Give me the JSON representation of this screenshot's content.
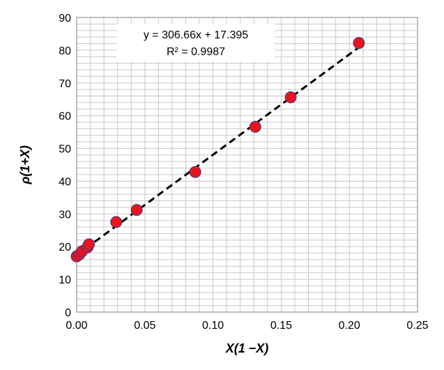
{
  "chart_data": {
    "type": "scatter",
    "title": "",
    "xlabel": "X(1 −X)",
    "ylabel": "ρ(1+X)",
    "xlim": [
      0,
      0.25
    ],
    "ylim": [
      0,
      90
    ],
    "x_ticks": [
      "0.00",
      "0.05",
      "0.10",
      "0.15",
      "0.20",
      "0.25"
    ],
    "y_ticks": [
      "0",
      "10",
      "20",
      "30",
      "40",
      "50",
      "60",
      "70",
      "80",
      "90"
    ],
    "grid": true,
    "series": [
      {
        "points": [
          {
            "x": 0.0,
            "y": 17.0
          },
          {
            "x": 0.002,
            "y": 17.6
          },
          {
            "x": 0.004,
            "y": 18.6
          },
          {
            "x": 0.008,
            "y": 19.8
          },
          {
            "x": 0.009,
            "y": 20.7
          },
          {
            "x": 0.029,
            "y": 27.5
          },
          {
            "x": 0.044,
            "y": 31.2
          },
          {
            "x": 0.087,
            "y": 42.8
          },
          {
            "x": 0.131,
            "y": 56.6
          },
          {
            "x": 0.157,
            "y": 65.6
          },
          {
            "x": 0.207,
            "y": 82.2
          }
        ],
        "marker_color": "#e8141c",
        "marker_edge_color": "#3b3b8f"
      }
    ],
    "trendline": {
      "slope": 306.66,
      "intercept": 17.395,
      "style": "dashed",
      "color": "#000000",
      "equation_label": "y = 306.66x + 17.395",
      "r2_label": "R² = 0.9987"
    }
  }
}
